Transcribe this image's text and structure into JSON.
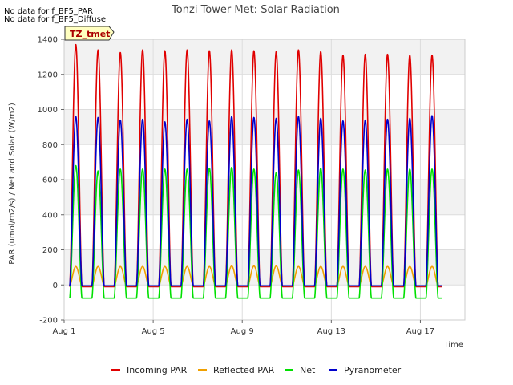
{
  "notes": [
    "No data for f_BF5_PAR",
    "No data for f_BF5_Diffuse"
  ],
  "badge": "TZ_tmet",
  "chart_data": {
    "type": "line",
    "title": "Tonzi Tower Met: Solar Radiation",
    "xlabel": "Time",
    "ylabel": "PAR (umol/m2/s) / Net and Solar (W/m2)",
    "xlim": [
      1,
      19
    ],
    "ylim": [
      -200,
      1400
    ],
    "yticks": [
      -200,
      0,
      200,
      400,
      600,
      800,
      1000,
      1200,
      1400
    ],
    "xticks": [
      {
        "value": 1,
        "label": "Aug 1"
      },
      {
        "value": 5,
        "label": "Aug 5"
      },
      {
        "value": 9,
        "label": "Aug 9"
      },
      {
        "value": 13,
        "label": "Aug 13"
      },
      {
        "value": 17,
        "label": "Aug 17"
      }
    ],
    "grid": true,
    "legend": "bottom",
    "days": [
      1,
      2,
      3,
      4,
      5,
      6,
      7,
      8,
      9,
      10,
      11,
      12,
      13,
      14,
      15,
      16,
      17
    ],
    "series": [
      {
        "name": "Incoming PAR",
        "color": "#e00000",
        "night_value": -10,
        "daily_peak": [
          1370,
          1340,
          1325,
          1340,
          1335,
          1340,
          1335,
          1340,
          1335,
          1330,
          1340,
          1330,
          1310,
          1315,
          1315,
          1310,
          1310
        ]
      },
      {
        "name": "Reflected PAR",
        "color": "#f0a000",
        "night_value": -5,
        "daily_peak": [
          105,
          105,
          105,
          105,
          105,
          105,
          105,
          108,
          108,
          108,
          105,
          105,
          105,
          105,
          105,
          105,
          105
        ]
      },
      {
        "name": "Net",
        "color": "#00e000",
        "night_value": -75,
        "daily_peak": [
          680,
          650,
          660,
          660,
          660,
          660,
          665,
          670,
          660,
          640,
          655,
          665,
          660,
          655,
          660,
          660,
          660
        ]
      },
      {
        "name": "Pyranometer",
        "color": "#0000cc",
        "night_value": -5,
        "daily_peak": [
          960,
          955,
          940,
          945,
          930,
          945,
          935,
          960,
          955,
          950,
          960,
          950,
          935,
          940,
          945,
          950,
          965
        ]
      }
    ]
  }
}
